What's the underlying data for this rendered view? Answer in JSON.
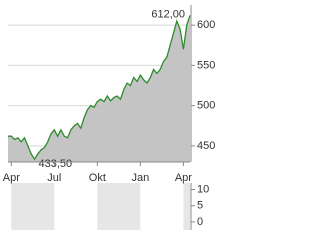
{
  "chart_data": [
    {
      "type": "line",
      "color": "#2e8b2e",
      "fill": "#c4c4c4",
      "grid": true,
      "categories": [
        null,
        "Apr",
        null,
        null,
        null,
        null,
        null,
        null,
        null,
        null,
        null,
        null,
        null,
        null,
        "Jul",
        null,
        null,
        null,
        null,
        null,
        null,
        null,
        null,
        null,
        null,
        null,
        null,
        "Okt",
        null,
        null,
        null,
        null,
        null,
        null,
        null,
        null,
        null,
        null,
        null,
        null,
        "Jan",
        null,
        null,
        null,
        null,
        null,
        null,
        null,
        null,
        null,
        null,
        null,
        null,
        "Apr",
        null,
        null
      ],
      "values": [
        462,
        462,
        458,
        460,
        455,
        460,
        450,
        440,
        433.5,
        440,
        445,
        448,
        455,
        465,
        470,
        462,
        470,
        462,
        460,
        470,
        475,
        478,
        472,
        485,
        495,
        500,
        498,
        505,
        508,
        505,
        512,
        506,
        510,
        512,
        508,
        520,
        528,
        525,
        535,
        530,
        538,
        532,
        528,
        535,
        545,
        540,
        545,
        555,
        560,
        575,
        590,
        605,
        595,
        570,
        600,
        612
      ],
      "value_labels": [
        null,
        null,
        null,
        null,
        null,
        null,
        null,
        null,
        "433,50",
        null,
        null,
        null,
        null,
        null,
        null,
        null,
        null,
        null,
        null,
        null,
        null,
        null,
        null,
        null,
        null,
        null,
        null,
        null,
        null,
        null,
        null,
        null,
        null,
        null,
        null,
        null,
        null,
        null,
        null,
        null,
        null,
        null,
        null,
        null,
        null,
        null,
        null,
        null,
        null,
        null,
        null,
        null,
        null,
        null,
        null,
        "612,00"
      ],
      "ylim": [
        430,
        625
      ],
      "yticks": [
        450,
        500,
        550,
        600
      ]
    },
    {
      "type": "bar",
      "values": [],
      "ylim": [
        -2.5,
        12
      ],
      "yticks": [
        0,
        5,
        10
      ]
    }
  ]
}
